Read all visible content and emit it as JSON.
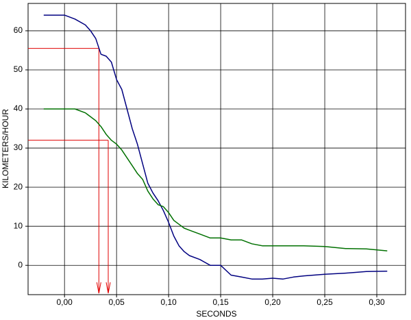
{
  "chart_data": {
    "type": "line",
    "x_label": "SECONDS",
    "y_label": "KILOMETERS/HOUR",
    "x": [
      -0.02,
      0,
      0.01,
      0.02,
      0.025,
      0.03,
      0.035,
      0.04,
      0.045,
      0.05,
      0.055,
      0.06,
      0.065,
      0.07,
      0.075,
      0.08,
      0.085,
      0.09,
      0.095,
      0.1,
      0.105,
      0.11,
      0.115,
      0.12,
      0.13,
      0.14,
      0.15,
      0.16,
      0.17,
      0.18,
      0.19,
      0.2,
      0.21,
      0.22,
      0.23,
      0.25,
      0.27,
      0.29,
      0.31
    ],
    "series": [
      {
        "color": "#000080",
        "values": [
          64,
          64,
          63,
          61.5,
          60,
          58,
          54,
          53.5,
          52,
          47.5,
          45,
          40,
          35,
          31,
          26,
          21,
          18.5,
          16.5,
          14,
          11,
          7.5,
          5,
          3.5,
          2.5,
          1.5,
          0,
          0,
          -2.5,
          -3,
          -3.5,
          -3.5,
          -3.3,
          -3.5,
          -3,
          -2.7,
          -2.3,
          -2,
          -1.6,
          -1.5
        ]
      },
      {
        "color": "#007000",
        "values": [
          40,
          40,
          40,
          39,
          38,
          37,
          35.5,
          33.5,
          32,
          31,
          29.5,
          27.5,
          25.5,
          23.5,
          22,
          19,
          17,
          15.5,
          15,
          13.5,
          11.5,
          10.5,
          9.5,
          9,
          8,
          7,
          7,
          6.5,
          6.5,
          5.5,
          5,
          5,
          5,
          5,
          5,
          4.8,
          4.3,
          4.2,
          3.7
        ]
      }
    ],
    "markers": [
      {
        "x": 0.033,
        "y": 55.5
      },
      {
        "x": 0.042,
        "y": 32
      }
    ],
    "marker_color": "#e00000",
    "xlim": [
      -0.035,
      0.3276
    ],
    "ylim": [
      -7.5,
      67
    ],
    "xticks": [
      {
        "value": 0,
        "label": "0,00"
      },
      {
        "value": 0.05,
        "label": "0,05"
      },
      {
        "value": 0.1,
        "label": "0,10"
      },
      {
        "value": 0.15,
        "label": "0,15"
      },
      {
        "value": 0.2,
        "label": "0,20"
      },
      {
        "value": 0.25,
        "label": "0,25"
      },
      {
        "value": 0.3,
        "label": "0,30"
      }
    ],
    "yticks": [
      0,
      10,
      20,
      30,
      40,
      50,
      60
    ],
    "grid": true
  }
}
